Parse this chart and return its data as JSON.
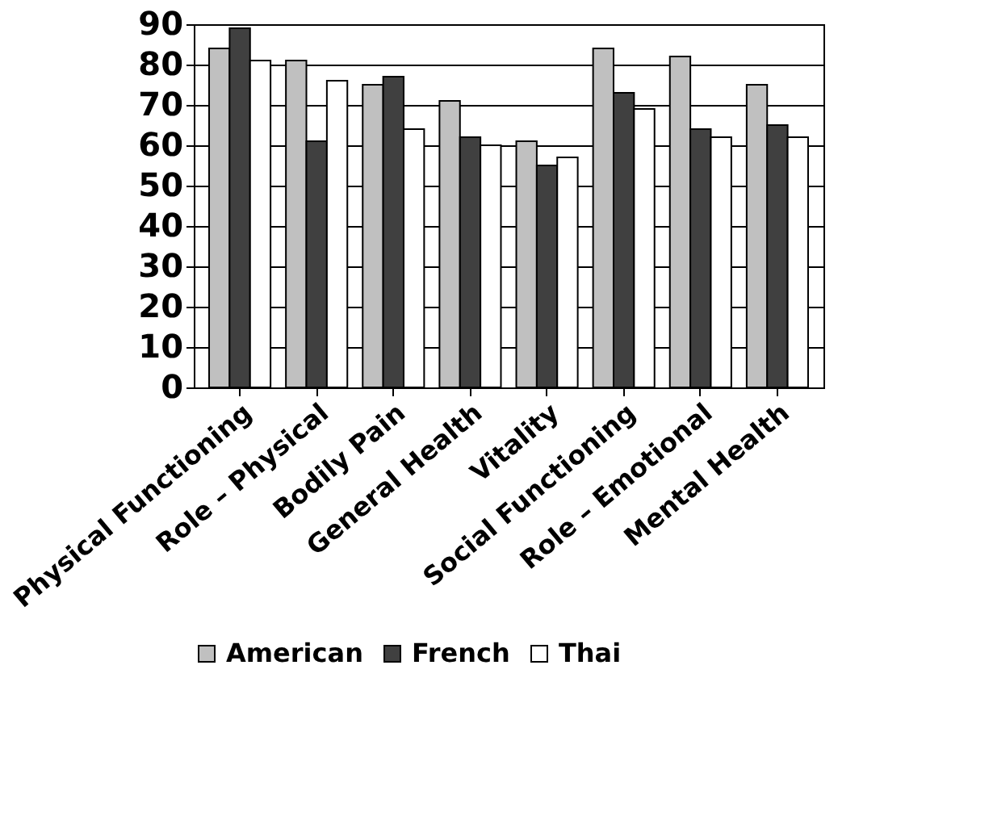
{
  "chart_data": {
    "type": "bar",
    "categories": [
      "Physical Functioning",
      "Role – Physical",
      "Bodily Pain",
      "General Health",
      "Vitality",
      "Social Functioning",
      "Role – Emotional",
      "Mental Health"
    ],
    "series": [
      {
        "name": "American",
        "color": "#c0c0c0",
        "values": [
          84,
          81,
          75,
          71,
          61,
          84,
          82,
          75
        ]
      },
      {
        "name": "French",
        "color": "#404040",
        "values": [
          89,
          61,
          77,
          62,
          55,
          73,
          64,
          65
        ]
      },
      {
        "name": "Thai",
        "color": "#ffffff",
        "values": [
          81,
          76,
          64,
          60,
          57,
          69,
          62,
          62
        ]
      }
    ],
    "ylim": [
      0,
      90
    ],
    "yticks": [
      0,
      10,
      20,
      30,
      40,
      50,
      60,
      70,
      80,
      90
    ],
    "grid": "y",
    "legend": "bottom"
  }
}
